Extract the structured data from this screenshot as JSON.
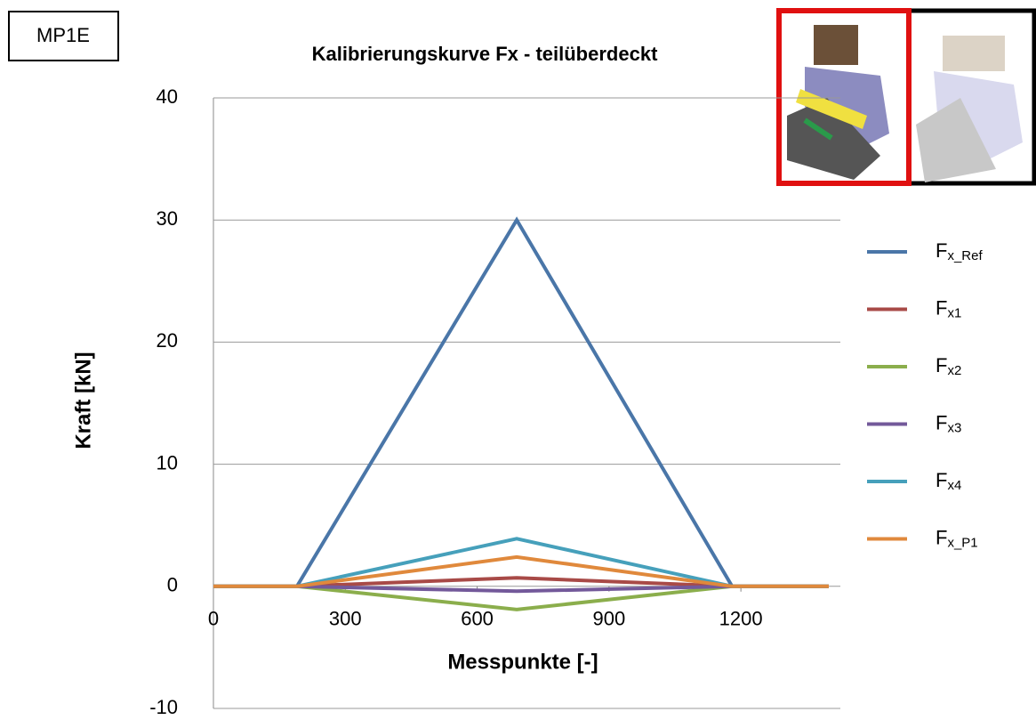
{
  "chart_data": {
    "type": "line",
    "title": "Kalibrierungskurve Fx  - teilüberdeckt",
    "badge": "MP1E",
    "xlabel": "Messpunkte [-]",
    "ylabel": "Kraft [kN]",
    "xlim": [
      0,
      1400
    ],
    "xticks": [
      0,
      300,
      600,
      900,
      1200
    ],
    "ylim": [
      -10,
      40
    ],
    "yticks": [
      -10,
      0,
      10,
      20,
      30,
      40
    ],
    "grid": true,
    "x": [
      0,
      190,
      690,
      1180,
      1400
    ],
    "series": [
      {
        "name": "Fx_Ref",
        "color": "#4a76a8",
        "values": [
          0,
          0,
          30,
          0,
          0
        ]
      },
      {
        "name": "Fx1",
        "color": "#a84a47",
        "values": [
          0,
          0,
          0.7,
          0,
          0
        ]
      },
      {
        "name": "Fx2",
        "color": "#8bae4c",
        "values": [
          0,
          0,
          -1.9,
          0,
          0
        ]
      },
      {
        "name": "Fx3",
        "color": "#73599a",
        "values": [
          0,
          0,
          -0.4,
          0,
          0
        ]
      },
      {
        "name": "Fx4",
        "color": "#46a0bb",
        "values": [
          0,
          0,
          3.9,
          0,
          0
        ]
      },
      {
        "name": "Fx_P1",
        "color": "#e0893c",
        "values": [
          0,
          0,
          2.4,
          0,
          0
        ]
      }
    ]
  }
}
